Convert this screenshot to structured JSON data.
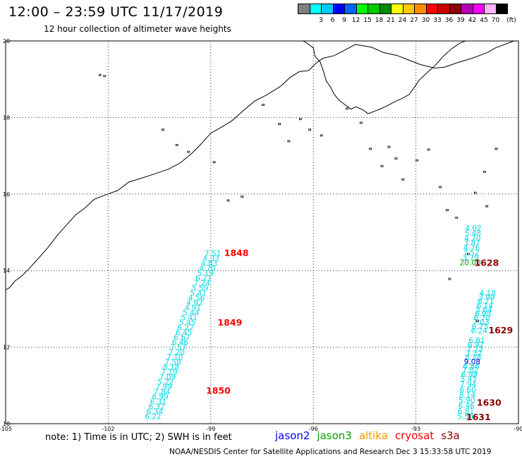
{
  "header": {
    "title": "12:00 – 23:59 UTC 11/17/2019",
    "subtitle": "12 hour collection of altimeter wave heights"
  },
  "scale": {
    "colors": [
      "#808080",
      "#00ffff",
      "#00c8ff",
      "#0000ff",
      "#0064ff",
      "#00ff00",
      "#00c800",
      "#008c00",
      "#ffff00",
      "#ffc800",
      "#ff8c00",
      "#ff0000",
      "#c80000",
      "#8c0000",
      "#b400b4",
      "#ff00ff",
      "#ffb4ff",
      "#000000"
    ],
    "labels": [
      "3",
      "6",
      "9",
      "12",
      "15",
      "18",
      "21",
      "24",
      "27",
      "30",
      "33",
      "36",
      "39",
      "42",
      "45",
      "70"
    ],
    "unit": "(ft)"
  },
  "axes": {
    "x_ticks": [
      "-105",
      "-102",
      "-99",
      "-96",
      "-93",
      "-90"
    ],
    "y_ticks": [
      "20",
      "18",
      "16",
      "14",
      "12",
      "10"
    ]
  },
  "tracks": [
    {
      "color": "#00d8e8",
      "start": [
        6.06,
        4.38
      ],
      "end": [
        4.31,
        0.12
      ],
      "values": [
        "7.51",
        "4.33",
        "4.83",
        "4.70",
        "5.19",
        "6.21",
        "7.24",
        "5.59",
        "5.41",
        "4.56",
        "4.92",
        "4.91",
        "5.44",
        "5.41",
        "5.45",
        "6.22",
        "6.45",
        "6.67",
        "6.46",
        "7.57",
        "7.20",
        "7.10",
        "7.58",
        "8.18",
        "7.19",
        "7.09",
        "5.22",
        "7.99",
        "7.84",
        "6.99",
        "6.31",
        "6.32",
        "6.34",
        "6.22"
      ],
      "labels": [
        {
          "text": "1848",
          "at": [
            6.75,
            4.38
          ],
          "color": "#ff0000"
        },
        {
          "text": "1849",
          "at": [
            6.56,
            2.56
          ],
          "color": "#ff0000"
        },
        {
          "text": "1850",
          "at": [
            6.22,
            0.78
          ],
          "color": "#ff0000"
        }
      ]
    },
    {
      "color": "#00d8e8",
      "start": [
        13.68,
        5.04
      ],
      "end": [
        13.59,
        4.14
      ],
      "values": [
        "4.02",
        "5.48",
        "4.70",
        "3.87",
        "4.76",
        "7.52",
        "3.79",
        "20.00"
      ],
      "value_colors": {
        "7": "#00a000"
      },
      "labels": [
        {
          "text": "1628",
          "at": [
            14.07,
            4.12
          ],
          "color": "#8c0000"
        }
      ]
    },
    {
      "color": "#00d8e8",
      "start": [
        14.1,
        3.35
      ],
      "end": [
        13.85,
        2.36
      ],
      "values": [
        "4.18",
        "3.99",
        "6.21",
        "6.14",
        "5.64",
        "6.98",
        "6.70",
        "7.03",
        "6.75",
        "6.24"
      ],
      "labels": []
    },
    {
      "color": "#00d8e8",
      "start": [
        13.78,
        2.1
      ],
      "end": [
        13.54,
        1.11
      ],
      "values": [
        "6.81",
        "6.97",
        "7.73",
        "7.32",
        "8.38",
        "9.08",
        "6.86",
        "7.82",
        "6.99",
        "5.45"
      ],
      "value_colors": {
        "5": "#0000e0"
      },
      "labels": [
        {
          "text": "1629",
          "at": [
            14.48,
            2.36
          ],
          "color": "#8c0000"
        }
      ]
    },
    {
      "color": "#00d8e8",
      "start": [
        13.53,
        0.96
      ],
      "end": [
        13.45,
        0.12
      ],
      "values": [
        "7.94",
        "6.60",
        "8.14",
        "5.90",
        "6.46",
        "6.81",
        "5.54"
      ],
      "labels": [
        {
          "text": "1630",
          "at": [
            14.14,
            0.47
          ],
          "color": "#8c0000"
        },
        {
          "text": "1631",
          "at": [
            13.83,
            0.09
          ],
          "color": "#8c0000"
        }
      ]
    }
  ],
  "footer": {
    "note": "note: 1) Time is in UTC; 2) SWH is in feet",
    "missions": [
      {
        "name": "jason2",
        "color": "#0000ff"
      },
      {
        "name": "jason3",
        "color": "#00a000"
      },
      {
        "name": "altika",
        "color": "#ff9900"
      },
      {
        "name": "cryosat",
        "color": "#ff0000"
      },
      {
        "name": "s3a",
        "color": "#8c0000"
      }
    ],
    "credit": "NOAA/NESDIS Center for Satellite Applications and Research   Dec  3 15:33:58 UTC 2019"
  }
}
